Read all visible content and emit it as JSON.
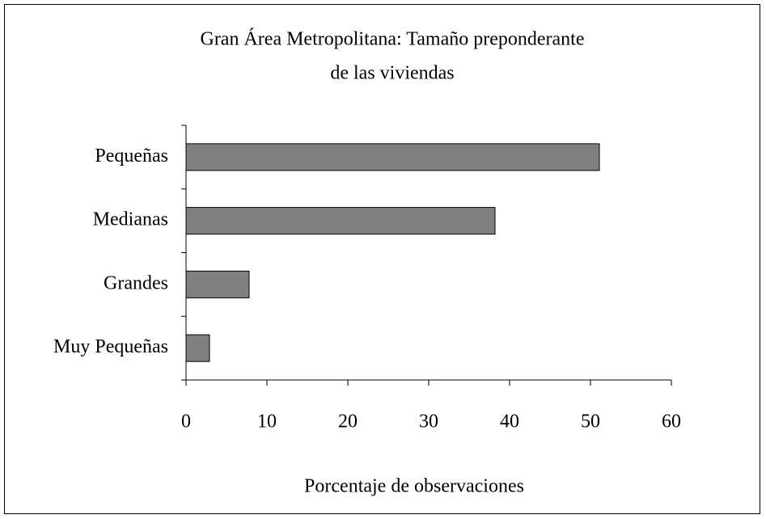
{
  "chart_data": {
    "type": "bar",
    "orientation": "horizontal",
    "title": [
      "Gran Área Metropolitana: Tamaño preponderante",
      "de las viviendas"
    ],
    "xlabel": "Porcentaje de observaciones",
    "categories": [
      "Pequeñas",
      "Medianas",
      "Grandes",
      "Muy Pequeñas"
    ],
    "values": [
      51.1,
      38.2,
      7.8,
      2.9
    ],
    "color": "#808080",
    "xlim": [
      0,
      60
    ],
    "xticks": [
      0,
      10,
      20,
      30,
      40,
      50,
      60
    ],
    "grid": false
  }
}
